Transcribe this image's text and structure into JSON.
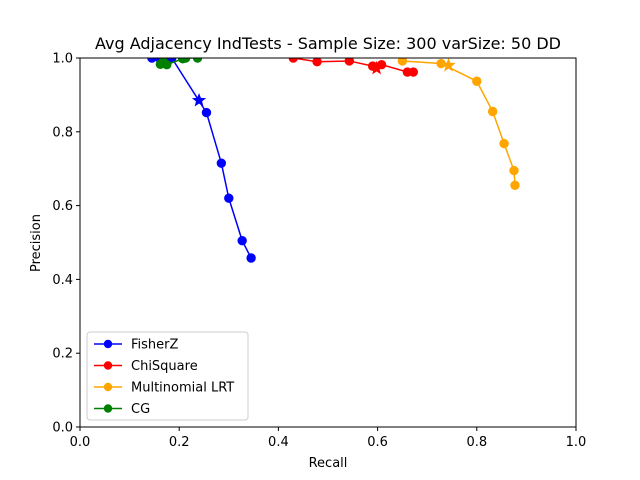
{
  "chart_data": {
    "type": "line",
    "title": "Avg Adjacency IndTests - Sample Size: 300 varSize: 50 DD",
    "xlabel": "Recall",
    "ylabel": "Precision",
    "xlim": [
      0.0,
      1.0
    ],
    "ylim": [
      0.0,
      1.0
    ],
    "xticks": [
      "0.0",
      "0.2",
      "0.4",
      "0.6",
      "0.8",
      "1.0"
    ],
    "yticks": [
      "0.0",
      "0.2",
      "0.4",
      "0.6",
      "0.8",
      "1.0"
    ],
    "grid": false,
    "legend_position": "lower-left",
    "series": [
      {
        "name": "FisherZ",
        "color": "#0000ff",
        "points": [
          [
            0.145,
            1.0
          ],
          [
            0.16,
            1.0
          ],
          [
            0.175,
            0.995
          ],
          [
            0.185,
            1.0
          ],
          [
            0.255,
            0.852
          ],
          [
            0.285,
            0.715
          ],
          [
            0.3,
            0.62
          ],
          [
            0.327,
            0.505
          ],
          [
            0.345,
            0.458
          ]
        ],
        "star": [
          0.24,
          0.885
        ]
      },
      {
        "name": "ChiSquare",
        "color": "#ff0000",
        "points": [
          [
            0.43,
            1.0
          ],
          [
            0.478,
            0.99
          ],
          [
            0.543,
            0.992
          ],
          [
            0.59,
            0.978
          ],
          [
            0.608,
            0.982
          ],
          [
            0.66,
            0.962
          ],
          [
            0.672,
            0.962
          ]
        ],
        "star": [
          0.598,
          0.972
        ]
      },
      {
        "name": "Multinomial LRT",
        "color": "#ffa500",
        "points": [
          [
            0.65,
            0.992
          ],
          [
            0.728,
            0.985
          ],
          [
            0.8,
            0.937
          ],
          [
            0.832,
            0.855
          ],
          [
            0.855,
            0.768
          ],
          [
            0.875,
            0.695
          ],
          [
            0.877,
            0.655
          ]
        ],
        "star": [
          0.743,
          0.98
        ]
      },
      {
        "name": "CG",
        "color": "#008000",
        "points": [
          [
            0.162,
            0.983
          ],
          [
            0.168,
            0.99
          ],
          [
            0.175,
            0.982
          ],
          [
            0.207,
            0.998
          ],
          [
            0.213,
            1.0
          ],
          [
            0.237,
            1.0
          ]
        ],
        "star": null
      }
    ]
  }
}
